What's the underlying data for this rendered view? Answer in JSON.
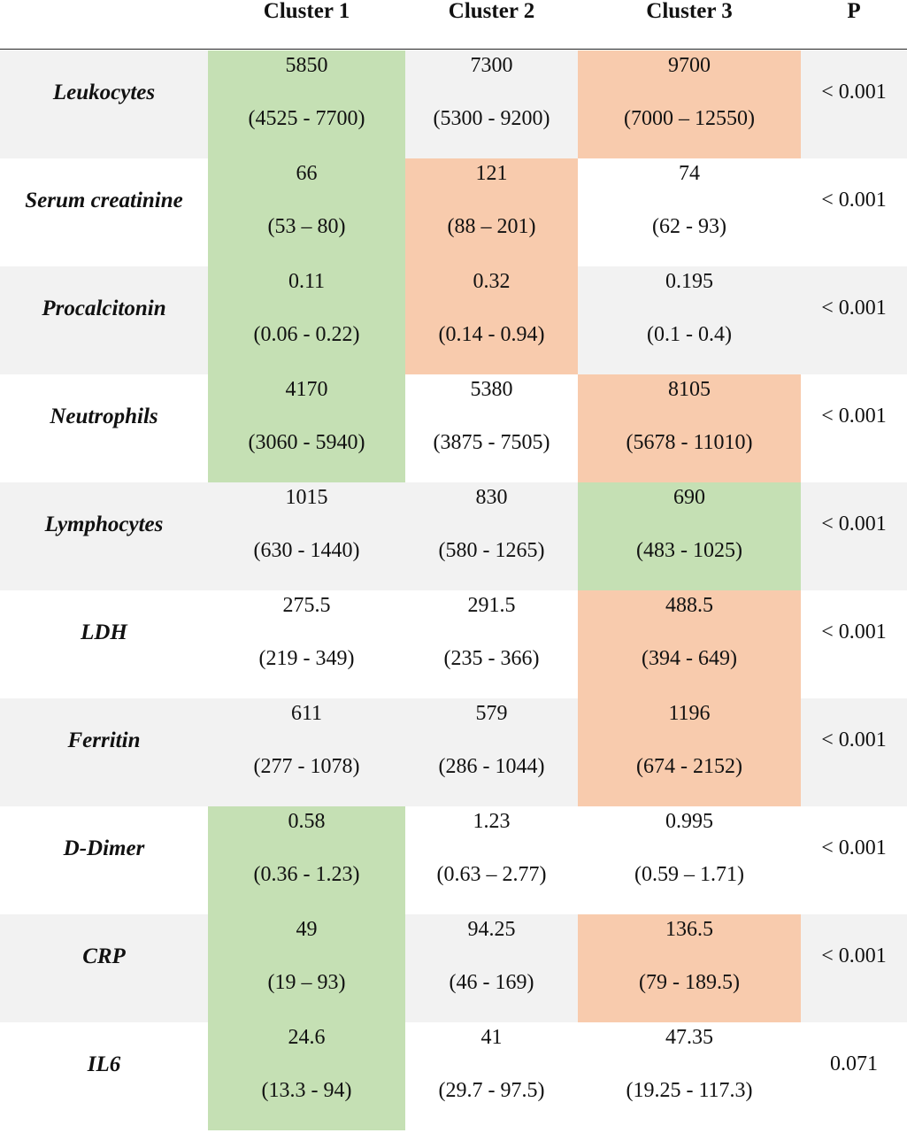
{
  "colors": {
    "low_highlight": "#c5e0b4",
    "high_highlight": "#f8cbad",
    "row_shade": "#f2f2f2"
  },
  "headers": {
    "label": "",
    "cluster1": "Cluster 1",
    "cluster2": "Cluster 2",
    "cluster3": "Cluster 3",
    "p": "P"
  },
  "rows": [
    {
      "label": "Leukocytes",
      "shaded": true,
      "cluster1": {
        "median": "5850",
        "range": "(4525 - 7700)",
        "highlight": "green"
      },
      "cluster2": {
        "median": "7300",
        "range": "(5300 - 9200)",
        "highlight": "none"
      },
      "cluster3": {
        "median": "9700",
        "range": "(7000 – 12550)",
        "highlight": "orange"
      },
      "p": "< 0.001"
    },
    {
      "label": "Serum creatinine",
      "shaded": false,
      "cluster1": {
        "median": "66",
        "range": "(53 – 80)",
        "highlight": "green"
      },
      "cluster2": {
        "median": "121",
        "range": "(88 – 201)",
        "highlight": "orange"
      },
      "cluster3": {
        "median": "74",
        "range": "(62 - 93)",
        "highlight": "none"
      },
      "p": "< 0.001"
    },
    {
      "label": "Procalcitonin",
      "shaded": true,
      "cluster1": {
        "median": "0.11",
        "range": "(0.06 - 0.22)",
        "highlight": "green"
      },
      "cluster2": {
        "median": "0.32",
        "range": "(0.14 - 0.94)",
        "highlight": "orange"
      },
      "cluster3": {
        "median": "0.195",
        "range": "(0.1 - 0.4)",
        "highlight": "none"
      },
      "p": "< 0.001"
    },
    {
      "label": "Neutrophils",
      "shaded": false,
      "cluster1": {
        "median": "4170",
        "range": "(3060 - 5940)",
        "highlight": "green"
      },
      "cluster2": {
        "median": "5380",
        "range": "(3875 - 7505)",
        "highlight": "none"
      },
      "cluster3": {
        "median": "8105",
        "range": "(5678 - 11010)",
        "highlight": "orange"
      },
      "p": "< 0.001"
    },
    {
      "label": "Lymphocytes",
      "shaded": true,
      "cluster1": {
        "median": "1015",
        "range": "(630 - 1440)",
        "highlight": "none"
      },
      "cluster2": {
        "median": "830",
        "range": "(580 - 1265)",
        "highlight": "none"
      },
      "cluster3": {
        "median": "690",
        "range": "(483 - 1025)",
        "highlight": "green"
      },
      "p": "< 0.001"
    },
    {
      "label": "LDH",
      "shaded": false,
      "cluster1": {
        "median": "275.5",
        "range": "(219 - 349)",
        "highlight": "none"
      },
      "cluster2": {
        "median": "291.5",
        "range": "(235 - 366)",
        "highlight": "none"
      },
      "cluster3": {
        "median": "488.5",
        "range": "(394 - 649)",
        "highlight": "orange"
      },
      "p": "< 0.001"
    },
    {
      "label": "Ferritin",
      "shaded": true,
      "cluster1": {
        "median": "611",
        "range": "(277 - 1078)",
        "highlight": "none"
      },
      "cluster2": {
        "median": "579",
        "range": "(286 - 1044)",
        "highlight": "none"
      },
      "cluster3": {
        "median": "1196",
        "range": "(674 - 2152)",
        "highlight": "orange"
      },
      "p": "< 0.001"
    },
    {
      "label": "D-Dimer",
      "shaded": false,
      "cluster1": {
        "median": "0.58",
        "range": "(0.36 - 1.23)",
        "highlight": "green"
      },
      "cluster2": {
        "median": "1.23",
        "range": "(0.63 – 2.77)",
        "highlight": "none"
      },
      "cluster3": {
        "median": "0.995",
        "range": "(0.59 – 1.71)",
        "highlight": "none"
      },
      "p": "< 0.001"
    },
    {
      "label": "CRP",
      "shaded": true,
      "cluster1": {
        "median": "49",
        "range": "(19 – 93)",
        "highlight": "green"
      },
      "cluster2": {
        "median": "94.25",
        "range": "(46 - 169)",
        "highlight": "none"
      },
      "cluster3": {
        "median": "136.5",
        "range": "(79 - 189.5)",
        "highlight": "orange"
      },
      "p": "< 0.001"
    },
    {
      "label": "IL6",
      "shaded": false,
      "cluster1": {
        "median": "24.6",
        "range": "(13.3 - 94)",
        "highlight": "green"
      },
      "cluster2": {
        "median": "41",
        "range": "(29.7 - 97.5)",
        "highlight": "none"
      },
      "cluster3": {
        "median": "47.35",
        "range": "(19.25 - 117.3)",
        "highlight": "none"
      },
      "p": "0.071"
    }
  ]
}
